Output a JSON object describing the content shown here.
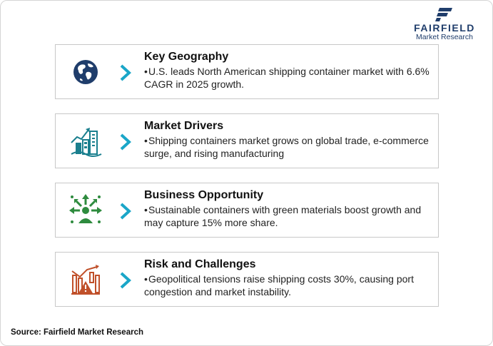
{
  "logo": {
    "name": "FAIRFIELD",
    "subtitle": "Market Research"
  },
  "colors": {
    "teal": "#1a7f8e",
    "navy": "#1f3d6b",
    "green": "#2e8b3e",
    "rust": "#c0502a",
    "chevron": "#1aa6c8"
  },
  "cards": [
    {
      "icon": "globe-icon",
      "title": "Key Geography",
      "bullet": "•",
      "text": "U.S. leads North American shipping container market with 6.6% CAGR in 2025 growth."
    },
    {
      "icon": "growth-buildings-icon",
      "title": "Market Drivers",
      "bullet": "•",
      "text": "Shipping containers market grows on global trade, e-commerce surge, and rising manufacturing"
    },
    {
      "icon": "opportunity-arrows-icon",
      "title": "Business Opportunity",
      "bullet": "•",
      "text": "Sustainable containers with green materials boost growth and may capture 15% more share."
    },
    {
      "icon": "risk-warning-icon",
      "title": "Risk and Challenges",
      "bullet": "•",
      "text": "Geopolitical tensions raise shipping costs 30%, causing port congestion and market instability."
    }
  ],
  "source": "Source: Fairfield Market Research"
}
